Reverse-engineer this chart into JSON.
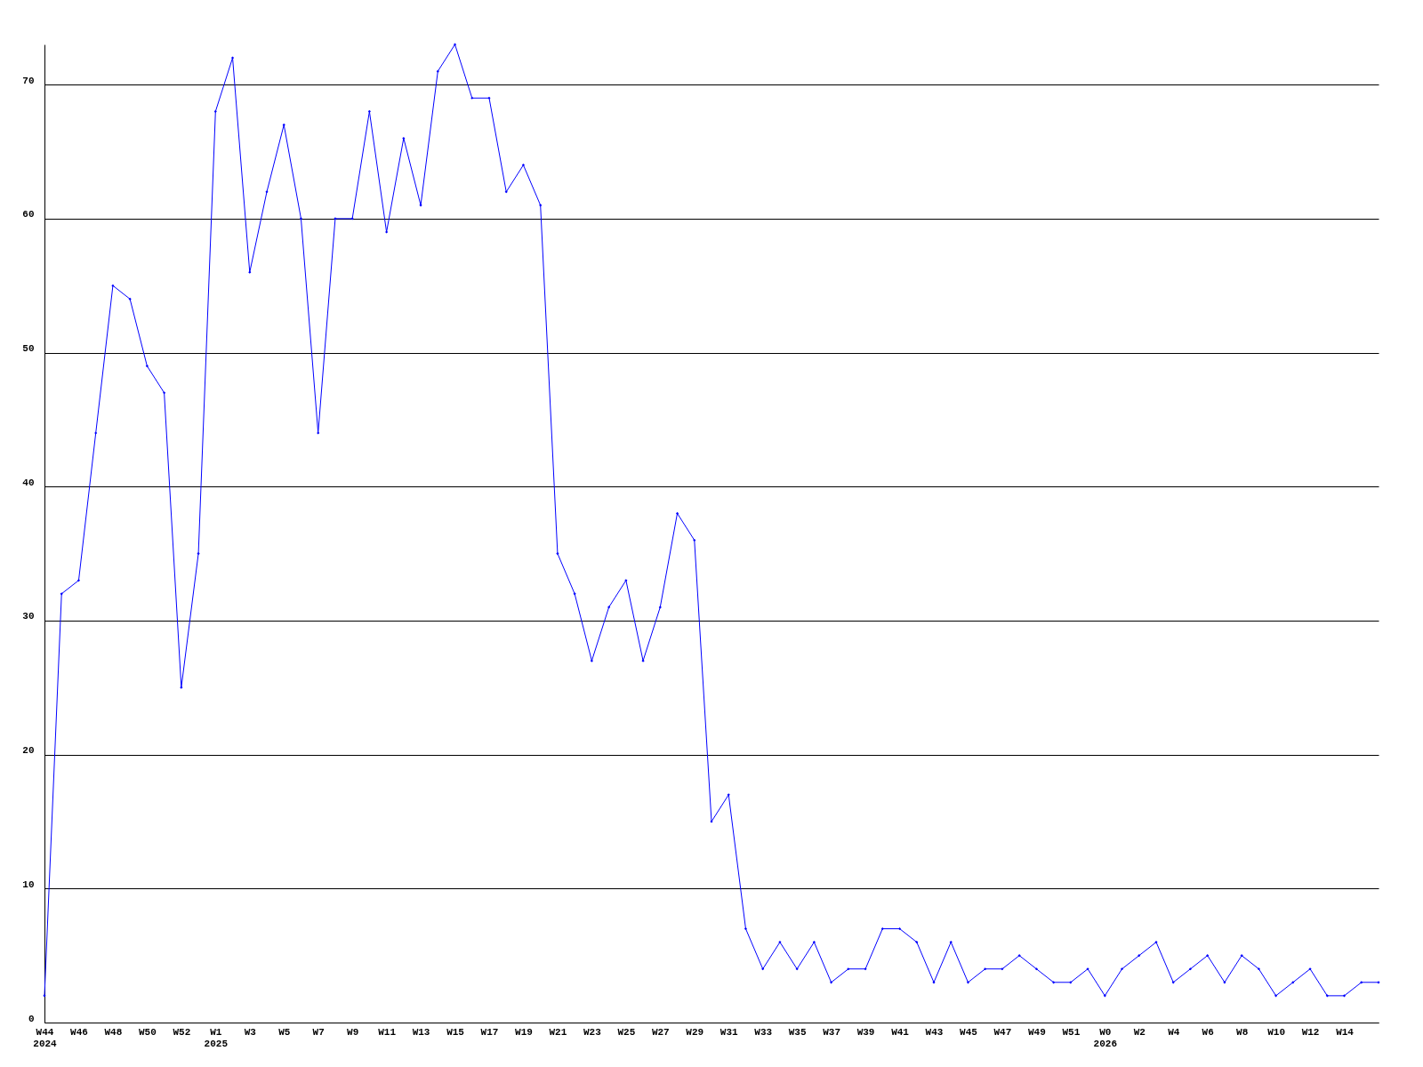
{
  "chart_data": {
    "type": "line",
    "categories": [
      "W44\n2024",
      null,
      "W46",
      null,
      "W48",
      null,
      "W50",
      null,
      "W52",
      null,
      "W1\n2025",
      null,
      "W3",
      null,
      "W5",
      null,
      "W7",
      null,
      "W9",
      null,
      "W11",
      null,
      "W13",
      null,
      "W15",
      null,
      "W17",
      null,
      "W19",
      null,
      "W21",
      null,
      "W23",
      null,
      "W25",
      null,
      "W27",
      null,
      "W29",
      null,
      "W31",
      null,
      "W33",
      null,
      "W35",
      null,
      "W37",
      null,
      "W39",
      null,
      "W41",
      null,
      "W43",
      null,
      "W45",
      null,
      "W47",
      null,
      "W49",
      null,
      "W51",
      null,
      "W0\n2026",
      null,
      "W2",
      null,
      "W4",
      null,
      "W6",
      null,
      "W8",
      null,
      "W10",
      null,
      "W12",
      null,
      "W14",
      null,
      null
    ],
    "series": [
      {
        "color": "#0000ff",
        "values": [
          2,
          32,
          33,
          44,
          55,
          54,
          49,
          47,
          25,
          35,
          68,
          72,
          56,
          62,
          67,
          60,
          44,
          60,
          60,
          68,
          59,
          66,
          61,
          71,
          73,
          69,
          69,
          62,
          64,
          61,
          35,
          32,
          27,
          31,
          33,
          27,
          31,
          38,
          36,
          15,
          17,
          7,
          4,
          6,
          4,
          6,
          3,
          4,
          4,
          7,
          7,
          6,
          3,
          6,
          3,
          4,
          4,
          5,
          4,
          3,
          3,
          4,
          2,
          4,
          5,
          6,
          3,
          4,
          5,
          3,
          5,
          4,
          2,
          3,
          4,
          2,
          2,
          3,
          3
        ]
      }
    ],
    "ylim": [
      0,
      73
    ],
    "yticks": [
      0,
      10,
      20,
      30,
      40,
      50,
      60,
      70
    ],
    "grid": "y",
    "marker": "diamond",
    "line_style": "solid"
  }
}
